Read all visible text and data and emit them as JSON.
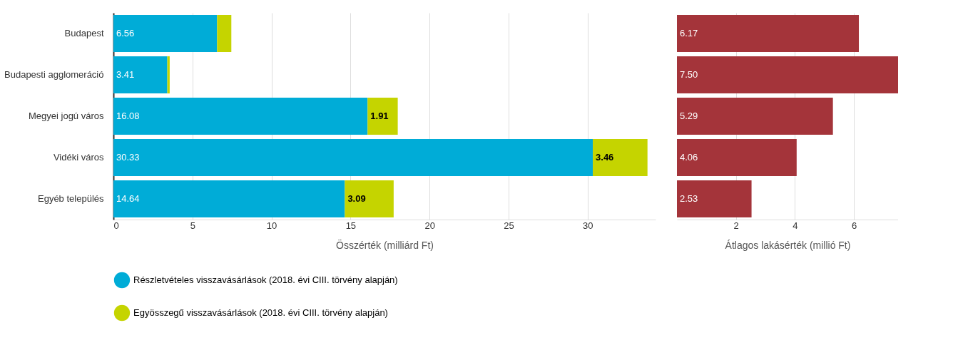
{
  "chart_data": [
    {
      "type": "bar",
      "orientation": "horizontal",
      "stacked": true,
      "xlabel": "Összérték (milliárd Ft)",
      "categories": [
        "Budapest",
        "Budapesti agglomeráció",
        "Megyei jogú város",
        "Vidéki város",
        "Egyéb település"
      ],
      "series": [
        {
          "name": "Részletvételes visszavásárlások (2018. évi CIII. törvény alapján)",
          "color": "#00acd7",
          "values": [
            6.56,
            3.41,
            16.08,
            30.33,
            14.64
          ],
          "value_labels": [
            "6.56",
            "3.41",
            "16.08",
            "30.33",
            "14.64"
          ]
        },
        {
          "name": "Egyösszegű visszavásárlások (2018. évi CIII. törvény alapján)",
          "color": "#c5d400",
          "values": [
            0.9,
            0.15,
            1.91,
            3.46,
            3.09
          ],
          "value_labels": [
            null,
            null,
            "1.91",
            "3.46",
            "3.09"
          ]
        }
      ],
      "xlim": [
        0,
        34.3
      ],
      "xticks": [
        0,
        5,
        10,
        15,
        20,
        25,
        30
      ],
      "grid": "x",
      "legend": "bottom"
    },
    {
      "type": "bar",
      "orientation": "horizontal",
      "xlabel": "Átlagos lakásérték (millió Ft)",
      "categories": [
        "Budapest",
        "Budapesti agglomeráció",
        "Megyei jogú város",
        "Vidéki város",
        "Egyéb település"
      ],
      "values": [
        6.17,
        7.5,
        5.29,
        4.06,
        2.53
      ],
      "color": "#a4343a",
      "value_labels": [
        "6.17",
        "7.50",
        "5.29",
        "4.06",
        "2.53"
      ],
      "xlim": [
        0,
        7.5
      ],
      "xticks": [
        2,
        4,
        6
      ],
      "grid": "x",
      "tick_labels": "x"
    }
  ]
}
